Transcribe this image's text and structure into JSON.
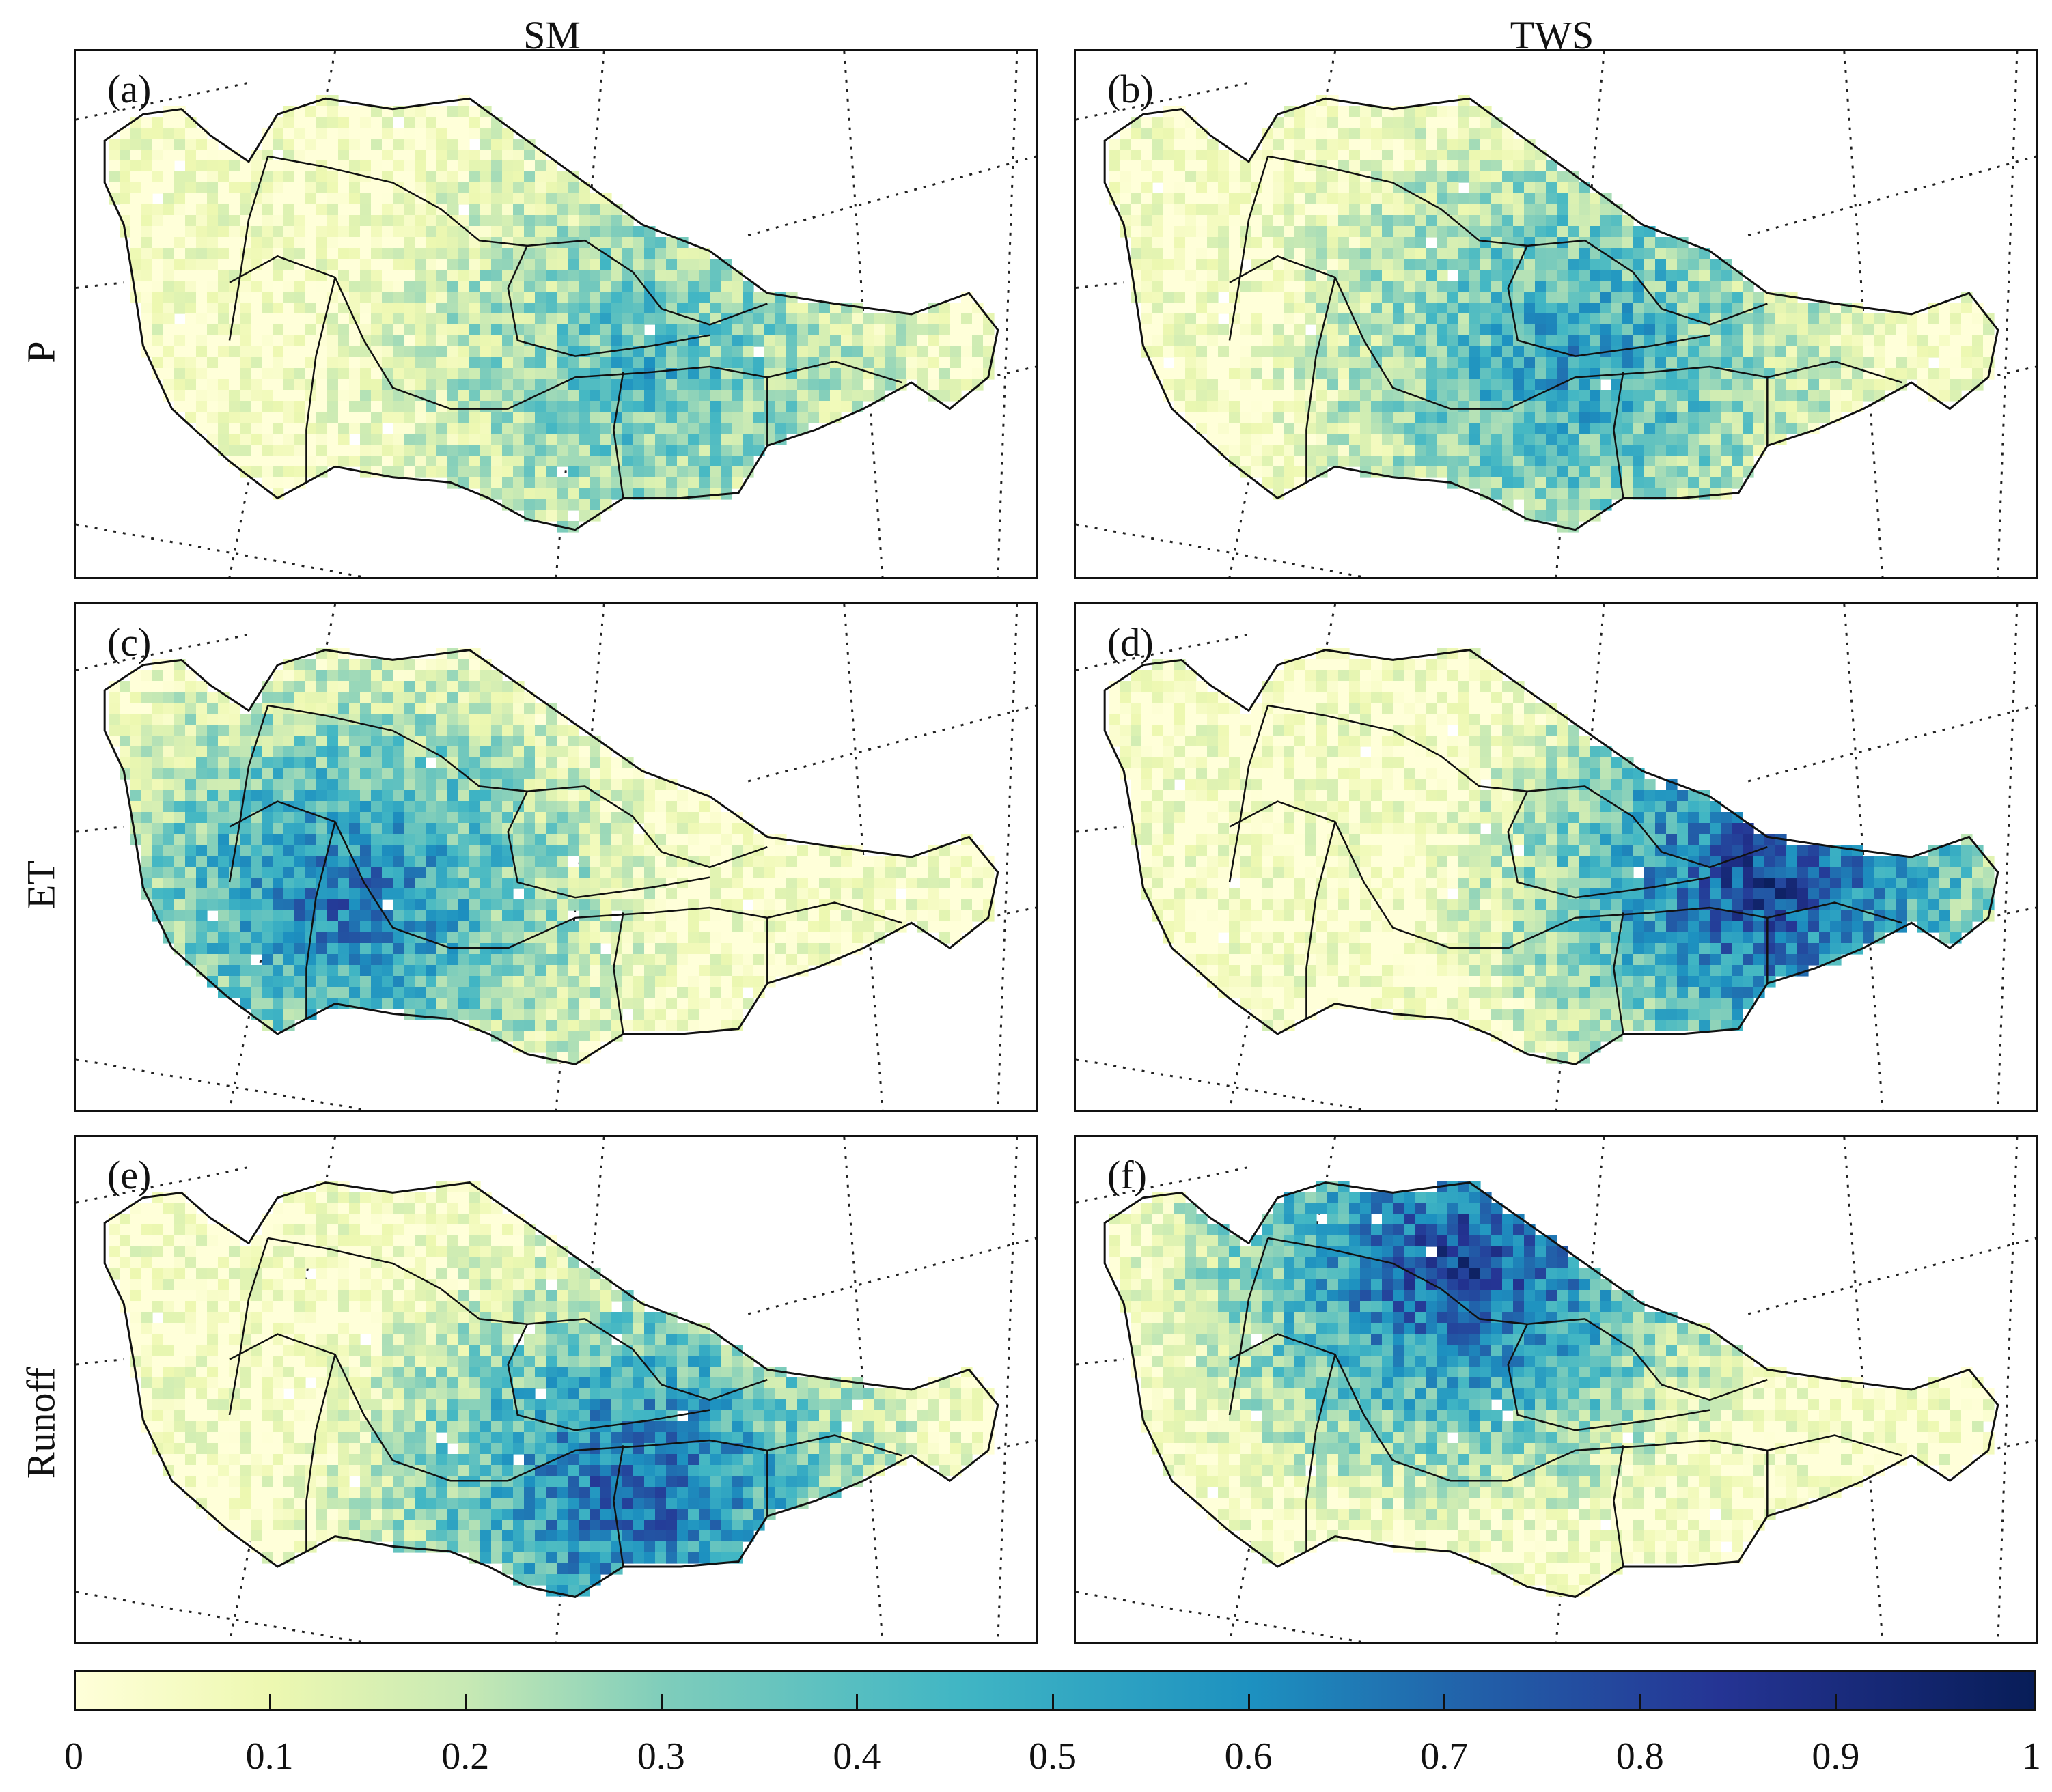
{
  "columns": [
    "SM",
    "TWS"
  ],
  "rows": [
    "P",
    "ET",
    "Runoff"
  ],
  "panels": [
    {
      "label": "(a)",
      "column": "SM",
      "row": "P",
      "intensity": 0.3,
      "focus": "south-east"
    },
    {
      "label": "(b)",
      "column": "TWS",
      "row": "P",
      "intensity": 0.38,
      "focus": "centre"
    },
    {
      "label": "(c)",
      "column": "SM",
      "row": "ET",
      "intensity": 0.45,
      "focus": "west"
    },
    {
      "label": "(d)",
      "column": "TWS",
      "row": "ET",
      "intensity": 0.55,
      "focus": "east"
    },
    {
      "label": "(e)",
      "column": "SM",
      "row": "Runoff",
      "intensity": 0.5,
      "focus": "south"
    },
    {
      "label": "(f)",
      "column": "TWS",
      "row": "Runoff",
      "intensity": 0.55,
      "focus": "north"
    }
  ],
  "colorbar": {
    "min": 0,
    "max": 1,
    "ticks": [
      "0",
      "0.1",
      "0.2",
      "0.3",
      "0.4",
      "0.5",
      "0.6",
      "0.7",
      "0.8",
      "0.9",
      "1"
    ],
    "colors": [
      "#ffffd9",
      "#edf8b1",
      "#c7e9b4",
      "#7fcdbb",
      "#41b6c4",
      "#1d91c0",
      "#225ea8",
      "#253494",
      "#081d58"
    ]
  }
}
